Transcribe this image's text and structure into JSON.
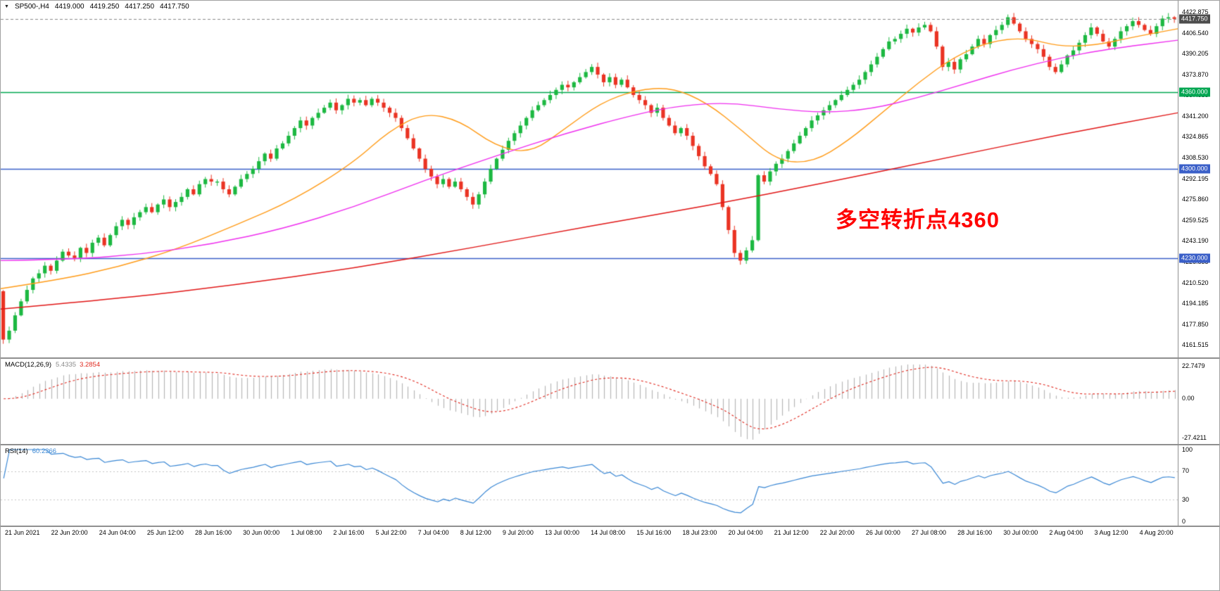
{
  "window": {
    "symbol": "SP500-,H4",
    "ohlc": {
      "open": "4419.000",
      "high": "4419.250",
      "low": "4417.250",
      "close": "4417.750"
    }
  },
  "annotation": {
    "text": "多空转折点4360",
    "color": "#ff0000"
  },
  "levels": [
    {
      "label": "4360.000",
      "value": 4360.0,
      "color": "#00a651"
    },
    {
      "label": "4300.000",
      "value": 4300.0,
      "color": "#3a5fc8"
    },
    {
      "label": "4230.000",
      "value": 4230.0,
      "color": "#3a5fc8"
    }
  ],
  "current_price": {
    "label": "4417.750",
    "value": 4417.75,
    "badge_color": "#4d4d4d"
  },
  "price_axis": {
    "tick_values": [
      4422.875,
      4406.54,
      4390.205,
      4373.87,
      4357.535,
      4341.2,
      4324.865,
      4308.53,
      4292.195,
      4275.86,
      4259.525,
      4243.19,
      4226.855,
      4210.52,
      4194.185,
      4177.85,
      4161.515
    ]
  },
  "macd": {
    "title": "MACD(12,26,9)",
    "main_value": "5.4335",
    "signal_value": "3.2854",
    "fast": 12,
    "slow": 26,
    "signal_period": 9,
    "axis_labels": [
      "22.7479",
      "0.00",
      "-27.4211"
    ],
    "hist_color": "#b6b6b6",
    "signal_color": "#e0281e"
  },
  "rsi": {
    "title": "RSI(14)",
    "value": "60.2366",
    "period": 14,
    "levels": [
      70,
      30
    ],
    "axis_labels": [
      "100",
      "70",
      "30",
      "0"
    ],
    "line_color": "#3a87d4"
  },
  "time_axis": {
    "labels": [
      "21 Jun 2021",
      "22 Jun 20:00",
      "24 Jun 04:00",
      "25 Jun 12:00",
      "28 Jun 16:00",
      "30 Jun 00:00",
      "1 Jul 08:00",
      "2 Jul 16:00",
      "5 Jul 22:00",
      "7 Jul 04:00",
      "8 Jul 12:00",
      "9 Jul 20:00",
      "13 Jul 00:00",
      "14 Jul 08:00",
      "15 Jul 16:00",
      "18 Jul 23:00",
      "20 Jul 04:00",
      "21 Jul 12:00",
      "22 Jul 20:00",
      "26 Jul 00:00",
      "27 Jul 08:00",
      "28 Jul 16:00",
      "30 Jul 00:00",
      "2 Aug 04:00",
      "3 Aug 12:00",
      "4 Aug 20:00"
    ]
  },
  "chart_data": {
    "type": "candlestick",
    "symbol": "SP500-",
    "timeframe": "H4",
    "title": "SP500- H4 price chart with fast/mid/slow moving averages, horizontal levels 4360/4300/4230, MACD(12,26,9) and RSI(14) subpanels",
    "x_range": [
      "21 Jun 2021 00:00",
      "4 Aug 2021 20:00"
    ],
    "y_range": [
      4152,
      4432
    ],
    "bars": 198,
    "first_open": 4204,
    "closes": [
      4166,
      4173,
      4185,
      4196,
      4205,
      4214,
      4218,
      4224,
      4220,
      4228,
      4235,
      4232,
      4230,
      4238,
      4234,
      4242,
      4246,
      4240,
      4248,
      4255,
      4260,
      4256,
      4262,
      4266,
      4270,
      4266,
      4272,
      4276,
      4270,
      4274,
      4278,
      4284,
      4280,
      4288,
      4292,
      4290,
      4290,
      4284,
      4280,
      4286,
      4292,
      4296,
      4300,
      4306,
      4312,
      4308,
      4316,
      4320,
      4326,
      4332,
      4338,
      4334,
      4340,
      4344,
      4348,
      4352,
      4346,
      4350,
      4355,
      4352,
      4354,
      4350,
      4355,
      4352,
      4348,
      4344,
      4340,
      4332,
      4324,
      4316,
      4308,
      4300,
      4294,
      4288,
      4292,
      4286,
      4290,
      4284,
      4278,
      4272,
      4280,
      4290,
      4300,
      4308,
      4315,
      4322,
      4328,
      4334,
      4340,
      4346,
      4350,
      4354,
      4358,
      4362,
      4366,
      4364,
      4368,
      4372,
      4376,
      4380,
      4374,
      4368,
      4372,
      4366,
      4370,
      4364,
      4358,
      4354,
      4350,
      4344,
      4348,
      4340,
      4334,
      4328,
      4332,
      4326,
      4318,
      4310,
      4302,
      4296,
      4288,
      4270,
      4252,
      4234,
      4228,
      4236,
      4244,
      4295,
      4290,
      4298,
      4304,
      4308,
      4314,
      4320,
      4326,
      4332,
      4338,
      4342,
      4346,
      4350,
      4354,
      4358,
      4362,
      4366,
      4370,
      4376,
      4382,
      4388,
      4394,
      4400,
      4402,
      4406,
      4410,
      4407,
      4411,
      4413,
      4408,
      4396,
      4380,
      4384,
      4378,
      4386,
      4390,
      4396,
      4402,
      4398,
      4405,
      4409,
      4413,
      4419,
      4414,
      4408,
      4402,
      4398,
      4394,
      4388,
      4380,
      4376,
      4382,
      4389,
      4393,
      4399,
      4405,
      4411,
      4406,
      4400,
      4396,
      4402,
      4408,
      4412,
      4416,
      4413,
      4409,
      4406,
      4412,
      4418,
      4419,
      4417.75
    ],
    "up_color": "#1cb841",
    "down_color": "#ea3323",
    "ma_lines": [
      {
        "name": "fast-ma",
        "color": "#ff9b18",
        "points": [
          [
            0,
            4206
          ],
          [
            0.05,
            4213
          ],
          [
            0.1,
            4223
          ],
          [
            0.15,
            4237
          ],
          [
            0.2,
            4256
          ],
          [
            0.25,
            4276
          ],
          [
            0.3,
            4305
          ],
          [
            0.33,
            4330
          ],
          [
            0.36,
            4344
          ],
          [
            0.39,
            4338
          ],
          [
            0.42,
            4318
          ],
          [
            0.45,
            4312
          ],
          [
            0.48,
            4332
          ],
          [
            0.51,
            4352
          ],
          [
            0.54,
            4362
          ],
          [
            0.57,
            4364
          ],
          [
            0.6,
            4352
          ],
          [
            0.63,
            4330
          ],
          [
            0.66,
            4306
          ],
          [
            0.69,
            4305
          ],
          [
            0.72,
            4322
          ],
          [
            0.75,
            4345
          ],
          [
            0.78,
            4368
          ],
          [
            0.81,
            4388
          ],
          [
            0.84,
            4400
          ],
          [
            0.87,
            4403
          ],
          [
            0.9,
            4396
          ],
          [
            0.93,
            4397
          ],
          [
            0.96,
            4403
          ],
          [
            1,
            4410
          ]
        ]
      },
      {
        "name": "mid-ma",
        "color": "#ee2fee",
        "points": [
          [
            0,
            4228
          ],
          [
            0.06,
            4229
          ],
          [
            0.12,
            4233
          ],
          [
            0.18,
            4241
          ],
          [
            0.24,
            4253
          ],
          [
            0.3,
            4270
          ],
          [
            0.36,
            4291
          ],
          [
            0.42,
            4310
          ],
          [
            0.48,
            4328
          ],
          [
            0.54,
            4343
          ],
          [
            0.58,
            4350
          ],
          [
            0.62,
            4352
          ],
          [
            0.66,
            4347
          ],
          [
            0.7,
            4344
          ],
          [
            0.74,
            4347
          ],
          [
            0.78,
            4356
          ],
          [
            0.82,
            4367
          ],
          [
            0.86,
            4378
          ],
          [
            0.9,
            4387
          ],
          [
            0.94,
            4394
          ],
          [
            1,
            4401
          ]
        ]
      },
      {
        "name": "slow-ma",
        "color": "#e01616",
        "points": [
          [
            0,
            4190
          ],
          [
            0.1,
            4198
          ],
          [
            0.2,
            4209
          ],
          [
            0.3,
            4222
          ],
          [
            0.4,
            4238
          ],
          [
            0.5,
            4255
          ],
          [
            0.6,
            4271
          ],
          [
            0.7,
            4289
          ],
          [
            0.8,
            4308
          ],
          [
            0.9,
            4327
          ],
          [
            1,
            4344
          ]
        ]
      }
    ]
  }
}
